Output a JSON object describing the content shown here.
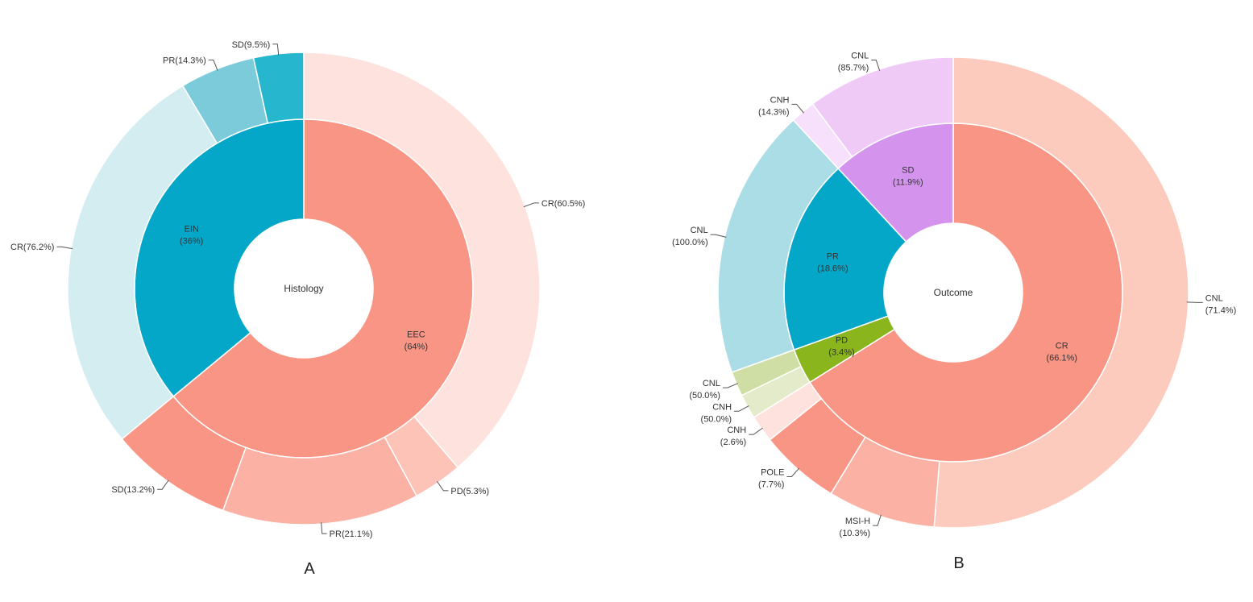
{
  "chart_data": [
    {
      "type": "sunburst",
      "panel": "A",
      "center_label": "Histology",
      "inner": [
        {
          "name": "EEC",
          "label": "EEC",
          "pct_label": "(64%)",
          "value": 64,
          "color": "#f99585",
          "children": [
            {
              "name": "CR",
              "label": "CR(60.5%)",
              "value": 60.5,
              "color": "#fde2de"
            },
            {
              "name": "PD",
              "label": "PD(5.3%)",
              "value": 5.3,
              "color": "#fcc3b6"
            },
            {
              "name": "PR",
              "label": "PR(21.1%)",
              "value": 21.1,
              "color": "#fcb1a5"
            },
            {
              "name": "SD",
              "label": "SD(13.2%)",
              "value": 13.2,
              "color": "#f99585"
            }
          ]
        },
        {
          "name": "EIN",
          "label": "EIN",
          "pct_label": "(36%)",
          "value": 36,
          "color": "#05a7c9",
          "children": [
            {
              "name": "CR",
              "label": "CR(76.2%)",
              "value": 76.2,
              "color": "#d4edf1"
            },
            {
              "name": "PR",
              "label": "PR(14.3%)",
              "value": 14.3,
              "color": "#7ccbda"
            },
            {
              "name": "SD",
              "label": "SD(9.5%)",
              "value": 9.5,
              "color": "#26b6cd"
            }
          ]
        }
      ]
    },
    {
      "type": "sunburst",
      "panel": "B",
      "center_label": "Outcome",
      "inner": [
        {
          "name": "CR",
          "label": "CR",
          "pct_label": "(66.1%)",
          "value": 66.1,
          "color": "#f99585",
          "children": [
            {
              "name": "CNL",
              "label": "CNL",
              "pct_label": "(71.4%)",
              "value": 71.4,
              "color": "#fccbbd"
            },
            {
              "name": "MSI-H",
              "label": "MSI-H",
              "pct_label": "(10.3%)",
              "value": 10.3,
              "color": "#fcb1a5"
            },
            {
              "name": "POLE",
              "label": "POLE",
              "pct_label": "(7.7%)",
              "value": 7.7,
              "color": "#f99585"
            },
            {
              "name": "CNH",
              "label": "CNH",
              "pct_label": "(2.6%)",
              "value": 2.6,
              "color": "#fde2de"
            }
          ]
        },
        {
          "name": "PD",
          "label": "PD",
          "pct_label": "(3.4%)",
          "value": 3.4,
          "color": "#8ab51c",
          "children": [
            {
              "name": "CNH",
              "label": "CNH",
              "pct_label": "(50.0%)",
              "value": 50.0,
              "color": "#e4ebcb"
            },
            {
              "name": "CNL",
              "label": "CNL",
              "pct_label": "(50.0%)",
              "value": 50.0,
              "color": "#cfdea5"
            }
          ]
        },
        {
          "name": "PR",
          "label": "PR",
          "pct_label": "(18.6%)",
          "value": 18.6,
          "color": "#05a7c9",
          "children": [
            {
              "name": "CNL",
              "label": "CNL",
              "pct_label": "(100.0%)",
              "value": 100.0,
              "color": "#abdde6"
            }
          ]
        },
        {
          "name": "SD",
          "label": "SD",
          "pct_label": "(11.9%)",
          "value": 11.9,
          "color": "#d494ee",
          "children": [
            {
              "name": "CNH",
              "label": "CNH",
              "pct_label": "(14.3%)",
              "value": 14.3,
              "color": "#f6e0fb"
            },
            {
              "name": "CNL",
              "label": "CNL",
              "pct_label": "(85.7%)",
              "value": 85.7,
              "color": "#efcaf7"
            }
          ]
        }
      ]
    }
  ]
}
